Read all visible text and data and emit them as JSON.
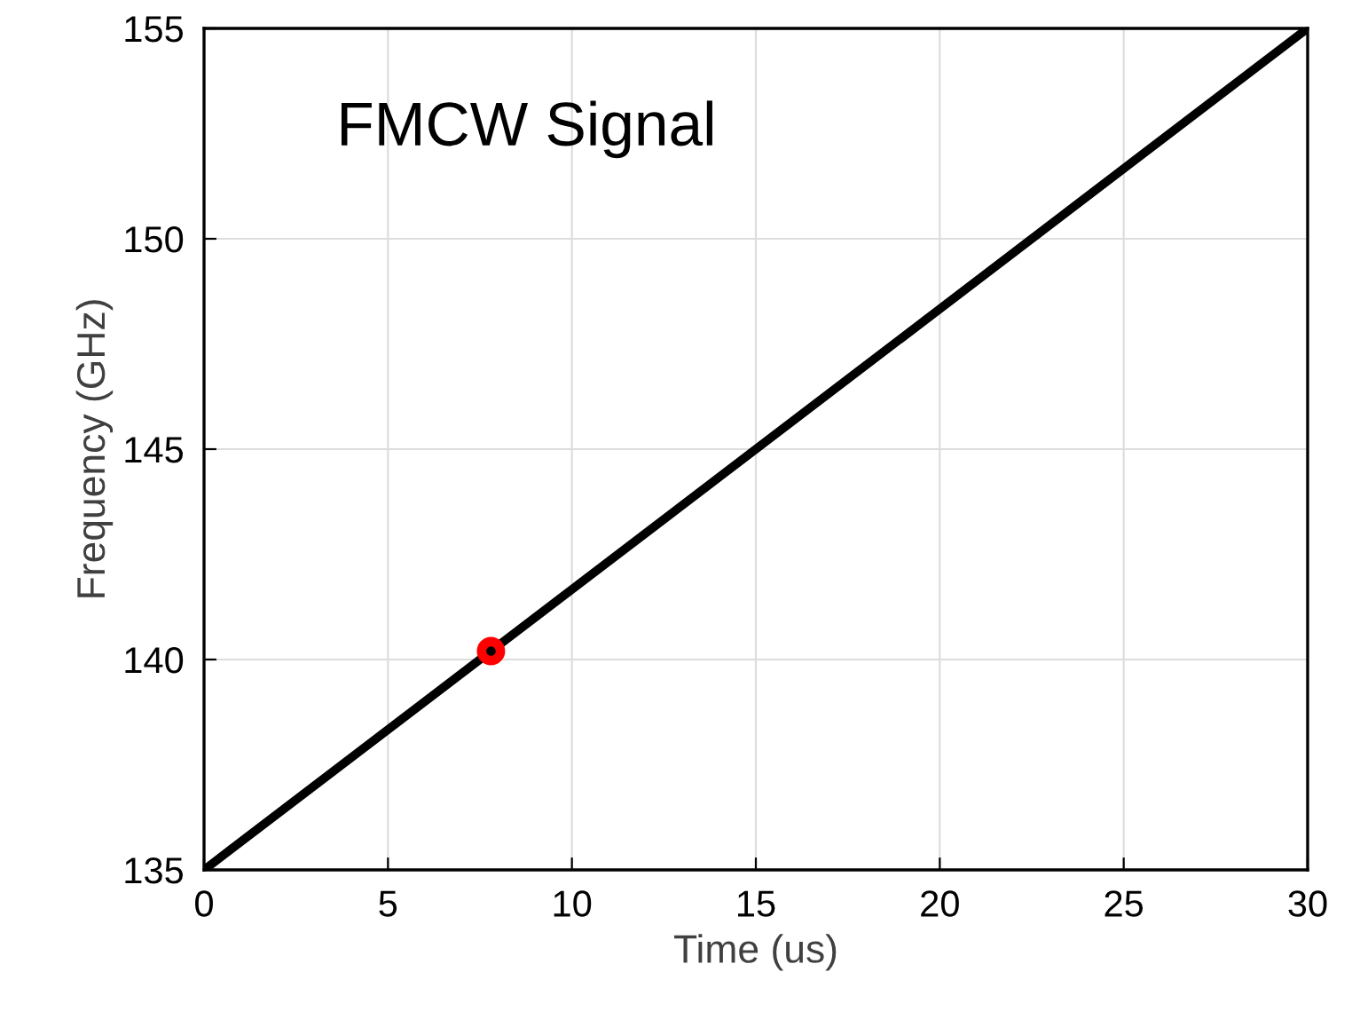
{
  "chart_data": {
    "type": "line",
    "xlabel": "Time (us)",
    "ylabel": "Frequency (GHz)",
    "annotations": [
      "FMCW Signal"
    ],
    "series": [
      {
        "color": "#000000",
        "x": [
          0,
          30
        ],
        "values": [
          135,
          155
        ],
        "marker": "none",
        "line_style": "solid"
      },
      {
        "type": "scatter",
        "color": "#ff0000",
        "x": [
          7.8
        ],
        "values": [
          140.2
        ],
        "marker": "circle"
      }
    ],
    "xlim": [
      0,
      30
    ],
    "xticks": [
      0,
      5,
      10,
      15,
      20,
      25,
      30
    ],
    "ylim": [
      135,
      155
    ],
    "yticks": [
      135,
      140,
      145,
      150,
      155
    ],
    "grid": true
  }
}
